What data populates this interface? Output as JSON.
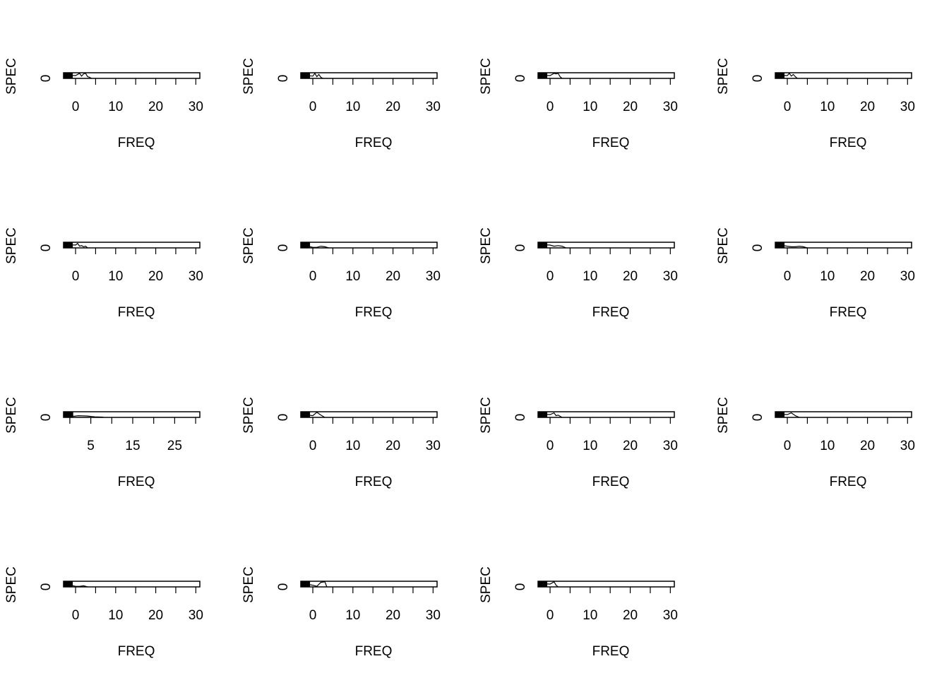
{
  "chart_data": [
    {
      "type": "line",
      "xlabel": "FREQ",
      "ylabel": "SPEC",
      "xlim": [
        -3,
        31
      ],
      "x_ticks": [
        0,
        5,
        10,
        15,
        20,
        25,
        30
      ],
      "x_tick_labels": [
        "0",
        "10",
        "20",
        "30"
      ],
      "y_ticks": [
        0
      ],
      "y_tick_labels": [
        "0"
      ],
      "series": [
        {
          "x": [
            -3,
            0,
            1,
            1.5,
            2,
            2.5,
            3,
            3.5,
            4
          ],
          "y": [
            0.6,
            0.5,
            0.9,
            0.4,
            0.8,
            0.9,
            0.3,
            0.2,
            0
          ]
        }
      ]
    },
    {
      "type": "line",
      "xlabel": "FREQ",
      "ylabel": "SPEC",
      "xlim": [
        -3,
        31
      ],
      "x_ticks": [
        0,
        5,
        10,
        15,
        20,
        25,
        30
      ],
      "x_tick_labels": [
        "0",
        "10",
        "20",
        "30"
      ],
      "y_ticks": [
        0
      ],
      "y_tick_labels": [
        "0"
      ],
      "series": [
        {
          "x": [
            -3,
            0,
            0.5,
            1,
            1.5,
            2,
            2.5
          ],
          "y": [
            0.6,
            0.4,
            0.9,
            0.3,
            0.7,
            0.2,
            0
          ]
        }
      ]
    },
    {
      "type": "line",
      "xlabel": "FREQ",
      "ylabel": "SPEC",
      "xlim": [
        -3,
        31
      ],
      "x_ticks": [
        0,
        5,
        10,
        15,
        20,
        25,
        30
      ],
      "x_tick_labels": [
        "0",
        "10",
        "20",
        "30"
      ],
      "y_ticks": [
        0
      ],
      "y_tick_labels": [
        "0"
      ],
      "series": [
        {
          "x": [
            -3,
            0,
            1,
            1.5,
            2,
            2.5,
            3
          ],
          "y": [
            0.6,
            0.5,
            0.9,
            0.8,
            0.9,
            0.3,
            0
          ]
        }
      ]
    },
    {
      "type": "line",
      "xlabel": "FREQ",
      "ylabel": "SPEC",
      "xlim": [
        -3,
        31
      ],
      "x_ticks": [
        0,
        5,
        10,
        15,
        20,
        25,
        30
      ],
      "x_tick_labels": [
        "0",
        "10",
        "20",
        "30"
      ],
      "y_ticks": [
        0
      ],
      "y_tick_labels": [
        "0"
      ],
      "series": [
        {
          "x": [
            -3,
            0,
            0.5,
            1,
            1.5,
            2,
            2.5
          ],
          "y": [
            0.6,
            0.5,
            0.9,
            0.4,
            0.7,
            0.3,
            0
          ]
        }
      ]
    },
    {
      "type": "line",
      "xlabel": "FREQ",
      "ylabel": "SPEC",
      "xlim": [
        -3,
        31
      ],
      "x_ticks": [
        0,
        5,
        10,
        15,
        20,
        25,
        30
      ],
      "x_tick_labels": [
        "0",
        "10",
        "20",
        "30"
      ],
      "y_ticks": [
        0
      ],
      "y_tick_labels": [
        "0"
      ],
      "series": [
        {
          "x": [
            -3,
            0,
            0.5,
            1,
            1.5,
            2,
            2.5,
            3
          ],
          "y": [
            0.6,
            0.5,
            0.8,
            0.3,
            0.4,
            0.2,
            0.3,
            0
          ]
        }
      ]
    },
    {
      "type": "line",
      "xlabel": "FREQ",
      "ylabel": "SPEC",
      "xlim": [
        -3,
        31
      ],
      "x_ticks": [
        0,
        5,
        10,
        15,
        20,
        25,
        30
      ],
      "x_tick_labels": [
        "0",
        "10",
        "20",
        "30"
      ],
      "y_ticks": [
        0
      ],
      "y_tick_labels": [
        "0"
      ],
      "series": [
        {
          "x": [
            -3,
            0,
            1,
            2,
            3,
            4
          ],
          "y": [
            0.6,
            0.1,
            0.1,
            0.3,
            0.2,
            0
          ]
        }
      ]
    },
    {
      "type": "line",
      "xlabel": "FREQ",
      "ylabel": "SPEC",
      "xlim": [
        -3,
        31
      ],
      "x_ticks": [
        0,
        5,
        10,
        15,
        20,
        25,
        30
      ],
      "x_tick_labels": [
        "0",
        "10",
        "20",
        "30"
      ],
      "y_ticks": [
        0
      ],
      "y_tick_labels": [
        "0"
      ],
      "series": [
        {
          "x": [
            -3,
            0,
            1,
            2,
            3,
            4
          ],
          "y": [
            0.6,
            0.5,
            0.3,
            0.4,
            0.3,
            0
          ]
        }
      ]
    },
    {
      "type": "line",
      "xlabel": "FREQ",
      "ylabel": "SPEC",
      "xlim": [
        -3,
        31
      ],
      "x_ticks": [
        0,
        5,
        10,
        15,
        20,
        25,
        30
      ],
      "x_tick_labels": [
        "0",
        "10",
        "20",
        "30"
      ],
      "y_ticks": [
        0
      ],
      "y_tick_labels": [
        "0"
      ],
      "series": [
        {
          "x": [
            -3,
            0,
            1,
            2,
            3,
            4,
            5
          ],
          "y": [
            0.6,
            0.3,
            0.2,
            0.2,
            0.3,
            0.2,
            0
          ]
        }
      ]
    },
    {
      "type": "line",
      "xlabel": "FREQ",
      "ylabel": "SPEC",
      "xlim": [
        -1.5,
        31
      ],
      "x_ticks": [
        0,
        5,
        10,
        15,
        20,
        25,
        30
      ],
      "x_tick_labels": [
        "5",
        "15",
        "25"
      ],
      "y_ticks": [
        0
      ],
      "y_tick_labels": [
        "0"
      ],
      "series": [
        {
          "x": [
            -1.5,
            1,
            2,
            4,
            6,
            8
          ],
          "y": [
            0.6,
            0.2,
            0.3,
            0.25,
            0.1,
            0.05
          ]
        }
      ]
    },
    {
      "type": "line",
      "xlabel": "FREQ",
      "ylabel": "SPEC",
      "xlim": [
        -3,
        31
      ],
      "x_ticks": [
        0,
        5,
        10,
        15,
        20,
        25,
        30
      ],
      "x_tick_labels": [
        "0",
        "10",
        "20",
        "30"
      ],
      "y_ticks": [
        0
      ],
      "y_tick_labels": [
        "0"
      ],
      "series": [
        {
          "x": [
            -3,
            0,
            1,
            2,
            3
          ],
          "y": [
            0.6,
            0.3,
            0.9,
            0.4,
            0
          ]
        }
      ]
    },
    {
      "type": "line",
      "xlabel": "FREQ",
      "ylabel": "SPEC",
      "xlim": [
        -3,
        31
      ],
      "x_ticks": [
        0,
        5,
        10,
        15,
        20,
        25,
        30
      ],
      "x_tick_labels": [
        "0",
        "10",
        "20",
        "30"
      ],
      "y_ticks": [
        0
      ],
      "y_tick_labels": [
        "0"
      ],
      "series": [
        {
          "x": [
            -3,
            0,
            1,
            1.5,
            2,
            2.5,
            3
          ],
          "y": [
            0.6,
            0.5,
            0.8,
            0.3,
            0.4,
            0.2,
            0
          ]
        }
      ]
    },
    {
      "type": "line",
      "xlabel": "FREQ",
      "ylabel": "SPEC",
      "xlim": [
        -3,
        31
      ],
      "x_ticks": [
        0,
        5,
        10,
        15,
        20,
        25,
        30
      ],
      "x_tick_labels": [
        "0",
        "10",
        "20",
        "30"
      ],
      "y_ticks": [
        0
      ],
      "y_tick_labels": [
        "0"
      ],
      "series": [
        {
          "x": [
            -3,
            0,
            1,
            2,
            3
          ],
          "y": [
            0.6,
            0.5,
            0.8,
            0.3,
            0
          ]
        }
      ]
    },
    {
      "type": "line",
      "xlabel": "FREQ",
      "ylabel": "SPEC",
      "xlim": [
        -3,
        31
      ],
      "x_ticks": [
        0,
        5,
        10,
        15,
        20,
        25,
        30
      ],
      "x_tick_labels": [
        "0",
        "10",
        "20",
        "30"
      ],
      "y_ticks": [
        0
      ],
      "y_tick_labels": [
        "0"
      ],
      "series": [
        {
          "x": [
            -3,
            0,
            1,
            2,
            3
          ],
          "y": [
            0.6,
            0.1,
            0.1,
            0.2,
            0
          ]
        }
      ]
    },
    {
      "type": "line",
      "xlabel": "FREQ",
      "ylabel": "SPEC",
      "xlim": [
        -3,
        31
      ],
      "x_ticks": [
        0,
        5,
        10,
        15,
        20,
        25,
        30
      ],
      "x_tick_labels": [
        "0",
        "10",
        "20",
        "30"
      ],
      "y_ticks": [
        0
      ],
      "y_tick_labels": [
        "0"
      ],
      "series": [
        {
          "x": [
            -3,
            0,
            1,
            2,
            3,
            3.5
          ],
          "y": [
            0.6,
            0.3,
            0.1,
            0.8,
            0.9,
            0
          ]
        }
      ]
    },
    {
      "type": "line",
      "xlabel": "FREQ",
      "ylabel": "SPEC",
      "xlim": [
        -3,
        31
      ],
      "x_ticks": [
        0,
        5,
        10,
        15,
        20,
        25,
        30
      ],
      "x_tick_labels": [
        "0",
        "10",
        "20",
        "30"
      ],
      "y_ticks": [
        0
      ],
      "y_tick_labels": [
        "0"
      ],
      "series": [
        {
          "x": [
            -3,
            0,
            1,
            1.5,
            2
          ],
          "y": [
            0.6,
            0.5,
            0.9,
            0.3,
            0
          ]
        }
      ]
    }
  ]
}
